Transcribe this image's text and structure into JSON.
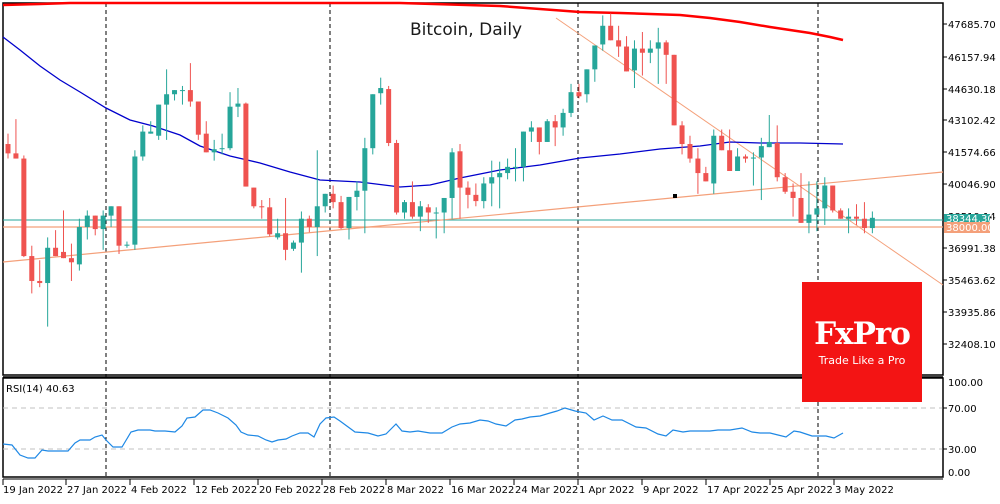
{
  "chart_data": {
    "type": "candlestick",
    "title": "Bitcoin, Daily",
    "symbol": "Bitcoin",
    "timeframe": "Daily",
    "price_axis": {
      "ticks": [
        "47685.70",
        "46157.94",
        "44630.18",
        "43102.42",
        "41574.66",
        "40046.90",
        "38519.14",
        "36991.38",
        "35463.62",
        "33935.86",
        "32408.10"
      ],
      "current_price_label": "38344.30",
      "level_label": "38000.00"
    },
    "time_axis": {
      "ticks": [
        "19 Jan 2022",
        "27 Jan 2022",
        "4 Feb 2022",
        "12 Feb 2022",
        "20 Feb 2022",
        "28 Feb 2022",
        "8 Mar 2022",
        "16 Mar 2022",
        "24 Mar 2022",
        "1 Apr 2022",
        "9 Apr 2022",
        "17 Apr 2022",
        "25 Apr 2022",
        "3 May 2022"
      ]
    },
    "candles": [
      [
        41900,
        42400,
        41200,
        41450
      ],
      [
        41450,
        43100,
        41200,
        41200
      ],
      [
        41200,
        41350,
        36450,
        36500
      ],
      [
        36500,
        37000,
        34700,
        35300
      ],
      [
        35300,
        36300,
        35000,
        35200
      ],
      [
        35200,
        37400,
        33100,
        36900
      ],
      [
        36900,
        37750,
        36700,
        36500
      ],
      [
        36700,
        38700,
        36400,
        36400
      ],
      [
        36400,
        37100,
        35300,
        36200
      ],
      [
        36100,
        38300,
        35800,
        37900
      ],
      [
        37900,
        38700,
        37300,
        38450
      ],
      [
        38450,
        38400,
        37500,
        37800
      ],
      [
        37800,
        38700,
        36800,
        38450
      ],
      [
        38450,
        38900,
        37900,
        38900
      ],
      [
        38900,
        38700,
        36600,
        37000
      ],
      [
        37000,
        37200,
        36900,
        37050
      ],
      [
        37050,
        41600,
        36800,
        41300
      ],
      [
        41300,
        42800,
        41100,
        42500
      ],
      [
        42400,
        43000,
        42500,
        42500
      ],
      [
        42300,
        43800,
        42100,
        43800
      ],
      [
        43800,
        45500,
        42100,
        44300
      ],
      [
        44300,
        44400,
        44000,
        44500
      ],
      [
        44500,
        44700,
        43800,
        44500
      ],
      [
        44500,
        45800,
        43700,
        43950
      ],
      [
        43950,
        43600,
        42100,
        42350
      ],
      [
        42400,
        43000,
        41900,
        41500
      ],
      [
        41500,
        42100,
        41100,
        41650
      ],
      [
        41650,
        42400,
        41400,
        41700
      ],
      [
        41700,
        44400,
        41600,
        43700
      ],
      [
        43700,
        44600,
        43200,
        43850
      ],
      [
        43850,
        43900,
        39900,
        39850
      ],
      [
        39800,
        39650,
        38800,
        38900
      ],
      [
        38900,
        39200,
        38300,
        38850
      ],
      [
        38850,
        39300,
        37450,
        37550
      ],
      [
        37400,
        38300,
        37300,
        37600
      ],
      [
        37600,
        39300,
        36300,
        36800
      ],
      [
        36850,
        37250,
        36750,
        37150
      ],
      [
        37150,
        38650,
        35700,
        38300
      ],
      [
        38300,
        38450,
        37650,
        37900
      ],
      [
        37900,
        41600,
        36500,
        38900
      ],
      [
        38900,
        39500,
        38600,
        39500
      ],
      [
        39500,
        39900,
        38800,
        39100
      ],
      [
        39100,
        39400,
        37800,
        37850
      ],
      [
        37850,
        39300,
        37300,
        39350
      ],
      [
        39350,
        40100,
        38700,
        39650
      ],
      [
        39650,
        42200,
        37600,
        41700
      ],
      [
        41700,
        44300,
        41400,
        44300
      ],
      [
        44350,
        45100,
        43800,
        44600
      ],
      [
        44550,
        44700,
        41800,
        41950
      ],
      [
        41950,
        42100,
        38500,
        38600
      ],
      [
        38600,
        39200,
        38300,
        39100
      ],
      [
        39100,
        40100,
        38300,
        38400
      ],
      [
        38400,
        39150,
        37700,
        38900
      ],
      [
        38850,
        39000,
        38100,
        38600
      ],
      [
        38600,
        38850,
        37350,
        38600
      ],
      [
        38600,
        38900,
        37600,
        39300
      ],
      [
        39300,
        41700,
        38300,
        41500
      ],
      [
        41550,
        41900,
        38300,
        39800
      ],
      [
        39800,
        40100,
        38800,
        39450
      ],
      [
        39450,
        40000,
        38900,
        39150
      ],
      [
        39150,
        40300,
        38800,
        40000
      ],
      [
        40000,
        41100,
        38900,
        40300
      ],
      [
        40300,
        41050,
        38800,
        40500
      ],
      [
        40500,
        41200,
        40200,
        40800
      ],
      [
        40800,
        41700,
        40100,
        40800
      ],
      [
        40800,
        42000,
        40100,
        42500
      ],
      [
        42500,
        43000,
        42000,
        42700
      ],
      [
        42700,
        42400,
        41400,
        42000
      ],
      [
        42000,
        43100,
        42200,
        43000
      ],
      [
        43000,
        43300,
        41800,
        42700
      ],
      [
        42700,
        43600,
        42300,
        43400
      ],
      [
        43400,
        44800,
        43200,
        44400
      ],
      [
        44400,
        44800,
        44100,
        44200
      ],
      [
        44300,
        45500,
        43900,
        45500
      ],
      [
        45500,
        46500,
        44900,
        46650
      ],
      [
        46700,
        48100,
        46400,
        47600
      ],
      [
        47600,
        48200,
        47200,
        46900
      ],
      [
        46900,
        47600,
        46100,
        46600
      ],
      [
        46600,
        47100,
        45400,
        45400
      ],
      [
        45450,
        46900,
        44600,
        46500
      ],
      [
        46500,
        47300,
        45200,
        46300
      ],
      [
        46300,
        46900,
        45800,
        46500
      ],
      [
        46500,
        47500,
        44800,
        46800
      ],
      [
        46800,
        46900,
        44800,
        46200
      ],
      [
        46200,
        45400,
        43500,
        42800
      ],
      [
        42800,
        43000,
        41400,
        41900
      ],
      [
        41900,
        42300,
        41000,
        41200
      ],
      [
        41200,
        41700,
        39500,
        40500
      ],
      [
        40500,
        40800,
        40400,
        40100
      ],
      [
        40000,
        42600,
        39500,
        42300
      ],
      [
        42300,
        42600,
        41800,
        41600
      ],
      [
        41600,
        42600,
        40600,
        40600
      ],
      [
        40600,
        41700,
        40600,
        41300
      ],
      [
        41300,
        41400,
        41000,
        41200
      ],
      [
        41200,
        41500,
        39900,
        41250
      ],
      [
        41250,
        42200,
        39200,
        41800
      ],
      [
        41750,
        43300,
        42400,
        42000
      ],
      [
        41950,
        42800,
        40100,
        40300
      ],
      [
        40300,
        40500,
        39500,
        39600
      ],
      [
        39600,
        40000,
        38400,
        39300
      ],
      [
        39300,
        40500,
        39400,
        38100
      ],
      [
        38100,
        40100,
        37600,
        38500
      ],
      [
        38500,
        40100,
        37700,
        38800
      ],
      [
        38800,
        40300,
        38000,
        39900
      ],
      [
        39900,
        39500,
        38600,
        38700
      ],
      [
        38700,
        38800,
        38400,
        38300
      ],
      [
        38300,
        38800,
        37600,
        38400
      ],
      [
        38400,
        39000,
        38000,
        38300
      ],
      [
        38300,
        39100,
        37600,
        37850
      ],
      [
        37850,
        38650,
        37600,
        38344
      ]
    ],
    "indicators": {
      "ma_blue": {
        "name": "Moving Average (50)",
        "color": "#0000cc"
      },
      "ma_red": {
        "name": "Moving Average (200)",
        "color": "#ff0000"
      },
      "trendline_down": {
        "color": "#f4a07a"
      },
      "trendline_up": {
        "color": "#f4a07a"
      },
      "support_38000": {
        "value": 38000,
        "color": "#f4a07a"
      },
      "current_line": {
        "value": 38344.3,
        "color": "#26a69a"
      }
    },
    "rsi": {
      "label": "RSI(14) 40.63",
      "period": 14,
      "last_value": 40.63,
      "ticks": [
        "100.00",
        "70.00",
        "30.00",
        "0.00"
      ],
      "levels": [
        70,
        30
      ],
      "ylim": [
        0,
        100
      ]
    },
    "grid": false,
    "colors": {
      "bull": "#26a69a",
      "bear": "#ef5350",
      "rsi_line": "#1e88e5"
    }
  },
  "header": {
    "title": "Bitcoin, Daily"
  },
  "rsi_panel": {
    "label": "RSI(14) 40.63"
  },
  "axis": {
    "price": {
      "t0": "47685.70",
      "t1": "46157.94",
      "t2": "44630.18",
      "t3": "43102.42",
      "t4": "41574.66",
      "t5": "40046.90",
      "t6": "38519.14",
      "t7": "36991.38",
      "t8": "35463.62",
      "t9": "33935.86",
      "t10": "32408.10",
      "current": "38344.30",
      "level": "38000.00"
    },
    "rsi": {
      "t100": "100.00",
      "t70": "70.00",
      "t30": "30.00",
      "t0": "0.00"
    },
    "time": {
      "d0": "19 Jan 2022",
      "d1": "27 Jan 2022",
      "d2": "4 Feb 2022",
      "d3": "12 Feb 2022",
      "d4": "20 Feb 2022",
      "d5": "28 Feb 2022",
      "d6": "8 Mar 2022",
      "d7": "16 Mar 2022",
      "d8": "24 Mar 2022",
      "d9": "1 Apr 2022",
      "d10": "9 Apr 2022",
      "d11": "17 Apr 2022",
      "d12": "25 Apr 2022",
      "d13": "3 May 2022"
    }
  },
  "logo": {
    "brand": "FxPro",
    "tagline": "Trade Like a Pro",
    "color": "#f31414"
  }
}
